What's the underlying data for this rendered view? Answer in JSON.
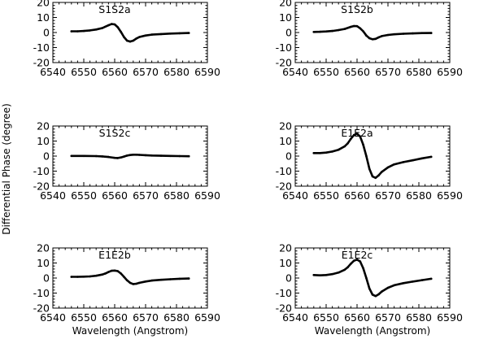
{
  "figure": {
    "ylabel": "Differential Phase (degree)",
    "xlabel": "Wavelength (Angstrom)"
  },
  "chart_data": [
    {
      "type": "line",
      "title": "S1S2a",
      "xlim": [
        6540,
        6590
      ],
      "ylim": [
        -20,
        20
      ],
      "xticks": [
        6540,
        6550,
        6560,
        6570,
        6580,
        6590
      ],
      "yticks": [
        -20,
        -10,
        0,
        10,
        20
      ],
      "show_xlabel": false,
      "series": [
        {
          "x": [
            6546,
            6548,
            6550,
            6552,
            6554,
            6556,
            6558,
            6559,
            6560,
            6561,
            6562,
            6563,
            6564,
            6565,
            6566,
            6567,
            6568,
            6570,
            6572,
            6575,
            6578,
            6581,
            6584
          ],
          "y": [
            0.8,
            0.8,
            1.0,
            1.4,
            2.0,
            3.0,
            4.8,
            5.6,
            5.4,
            3.5,
            0.5,
            -3.0,
            -5.4,
            -6.0,
            -5.4,
            -4.0,
            -3.0,
            -2.0,
            -1.4,
            -1.0,
            -0.7,
            -0.5,
            -0.3
          ]
        }
      ]
    },
    {
      "type": "line",
      "title": "S1S2b",
      "xlim": [
        6540,
        6590
      ],
      "ylim": [
        -20,
        20
      ],
      "xticks": [
        6540,
        6550,
        6560,
        6570,
        6580,
        6590
      ],
      "yticks": [
        -20,
        -10,
        0,
        10,
        20
      ],
      "show_xlabel": false,
      "series": [
        {
          "x": [
            6546,
            6548,
            6550,
            6552,
            6554,
            6556,
            6558,
            6559,
            6560,
            6561,
            6562,
            6563,
            6564,
            6565,
            6566,
            6567,
            6568,
            6570,
            6572,
            6575,
            6578,
            6581,
            6584
          ],
          "y": [
            0.4,
            0.5,
            0.7,
            1.0,
            1.6,
            2.4,
            3.8,
            4.3,
            4.2,
            2.8,
            0.8,
            -2.0,
            -3.8,
            -4.5,
            -4.2,
            -3.2,
            -2.4,
            -1.6,
            -1.2,
            -0.8,
            -0.6,
            -0.4,
            -0.3
          ]
        }
      ]
    },
    {
      "type": "line",
      "title": "S1S2c",
      "xlim": [
        6540,
        6590
      ],
      "ylim": [
        -20,
        20
      ],
      "xticks": [
        6540,
        6550,
        6560,
        6570,
        6580,
        6590
      ],
      "yticks": [
        -20,
        -10,
        0,
        10,
        20
      ],
      "show_xlabel": false,
      "series": [
        {
          "x": [
            6546,
            6550,
            6554,
            6556,
            6558,
            6560,
            6561,
            6562,
            6563,
            6564,
            6565,
            6566,
            6567,
            6568,
            6570,
            6572,
            6575,
            6578,
            6581,
            6584
          ],
          "y": [
            0.1,
            0.1,
            0.0,
            -0.2,
            -0.6,
            -1.2,
            -1.3,
            -0.9,
            -0.3,
            0.3,
            0.7,
            0.9,
            0.9,
            0.8,
            0.6,
            0.4,
            0.2,
            0.1,
            0.0,
            -0.1
          ]
        }
      ]
    },
    {
      "type": "line",
      "title": "E1E2a",
      "xlim": [
        6540,
        6590
      ],
      "ylim": [
        -20,
        20
      ],
      "xticks": [
        6540,
        6550,
        6560,
        6570,
        6580,
        6590
      ],
      "yticks": [
        -20,
        -10,
        0,
        10,
        20
      ],
      "show_xlabel": false,
      "series": [
        {
          "x": [
            6546,
            6548,
            6550,
            6552,
            6554,
            6556,
            6557,
            6558,
            6559,
            6560,
            6561,
            6562,
            6563,
            6564,
            6565,
            6566,
            6567,
            6568,
            6570,
            6572,
            6575,
            6578,
            6581,
            6584
          ],
          "y": [
            2.0,
            2.0,
            2.3,
            3.0,
            4.2,
            6.5,
            8.5,
            11.5,
            14.0,
            14.8,
            13.0,
            7.5,
            0.0,
            -8.5,
            -13.5,
            -14.5,
            -12.8,
            -10.5,
            -7.5,
            -5.5,
            -4.0,
            -2.8,
            -1.5,
            -0.5
          ]
        }
      ]
    },
    {
      "type": "line",
      "title": "E1E2b",
      "xlim": [
        6540,
        6590
      ],
      "ylim": [
        -20,
        20
      ],
      "xticks": [
        6540,
        6550,
        6560,
        6570,
        6580,
        6590
      ],
      "yticks": [
        -20,
        -10,
        0,
        10,
        20
      ],
      "show_xlabel": true,
      "series": [
        {
          "x": [
            6546,
            6548,
            6550,
            6552,
            6554,
            6556,
            6557,
            6558,
            6559,
            6560,
            6561,
            6562,
            6563,
            6564,
            6565,
            6566,
            6567,
            6568,
            6570,
            6572,
            6575,
            6578,
            6581,
            6584
          ],
          "y": [
            0.8,
            0.8,
            0.9,
            1.1,
            1.5,
            2.3,
            3.0,
            4.0,
            4.8,
            5.0,
            4.6,
            3.0,
            0.8,
            -1.5,
            -3.2,
            -4.0,
            -3.8,
            -3.2,
            -2.3,
            -1.7,
            -1.2,
            -0.8,
            -0.5,
            -0.3
          ]
        }
      ]
    },
    {
      "type": "line",
      "title": "E1E2c",
      "xlim": [
        6540,
        6590
      ],
      "ylim": [
        -20,
        20
      ],
      "xticks": [
        6540,
        6550,
        6560,
        6570,
        6580,
        6590
      ],
      "yticks": [
        -20,
        -10,
        0,
        10,
        20
      ],
      "show_xlabel": true,
      "series": [
        {
          "x": [
            6546,
            6548,
            6550,
            6552,
            6554,
            6556,
            6557,
            6558,
            6559,
            6560,
            6561,
            6562,
            6563,
            6564,
            6565,
            6566,
            6567,
            6568,
            6570,
            6572,
            6575,
            6578,
            6581,
            6584
          ],
          "y": [
            2.0,
            1.8,
            2.0,
            2.6,
            3.6,
            5.5,
            7.2,
            9.5,
            11.5,
            12.2,
            11.0,
            6.5,
            0.0,
            -7.0,
            -11.0,
            -12.0,
            -10.8,
            -9.0,
            -6.5,
            -4.8,
            -3.4,
            -2.4,
            -1.4,
            -0.5
          ]
        }
      ]
    }
  ]
}
